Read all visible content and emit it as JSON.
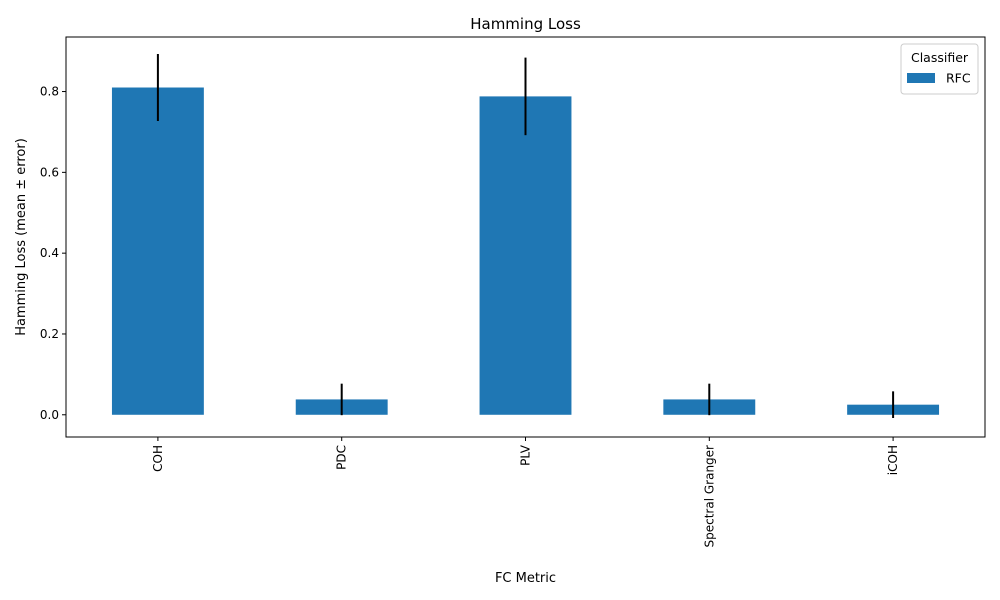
{
  "chart_data": {
    "type": "bar",
    "title": "Hamming Loss",
    "xlabel": "FC Metric",
    "ylabel": "Hamming Loss (mean ± error)",
    "categories": [
      "COH",
      "PDC",
      "PLV",
      "Spectral Granger",
      "iCOH"
    ],
    "series": [
      {
        "name": "RFC",
        "values": [
          0.81,
          0.038,
          0.788,
          0.038,
          0.025
        ],
        "errors": [
          0.083,
          0.039,
          0.096,
          0.039,
          0.033
        ],
        "color": "#1f77b4"
      }
    ],
    "ylim": [
      -0.055,
      0.935
    ],
    "yticks": [
      0.0,
      0.2,
      0.4,
      0.6,
      0.8
    ],
    "ytick_labels": [
      "0.0",
      "0.2",
      "0.4",
      "0.6",
      "0.8"
    ],
    "grid": false,
    "legend": {
      "title": "Classifier",
      "placement": "top-right"
    },
    "errorbar_color": "#000000"
  }
}
